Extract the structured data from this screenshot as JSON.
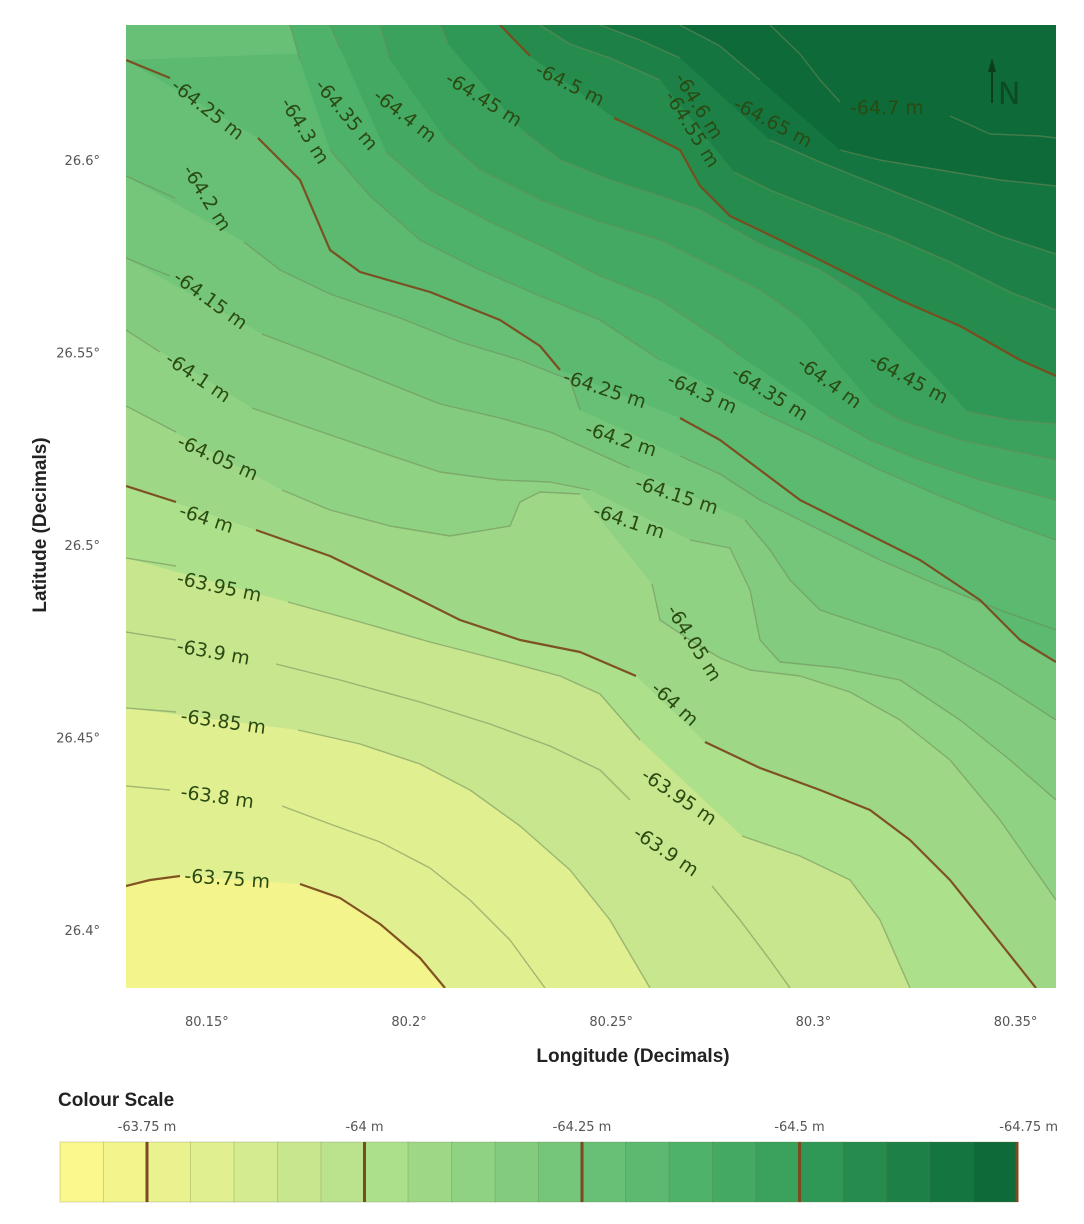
{
  "chart_data": {
    "type": "contour",
    "title": "",
    "xlabel": "Longitude (Decimals)",
    "ylabel": "Latitude (Decimals)",
    "x_ticks": [
      "80.15°",
      "80.2°",
      "80.25°",
      "80.3°",
      "80.35°"
    ],
    "x_tick_values": [
      80.15,
      80.2,
      80.25,
      80.3,
      80.35
    ],
    "y_ticks": [
      "26.6°",
      "26.55°",
      "26.5°",
      "26.45°",
      "26.4°"
    ],
    "y_tick_values": [
      26.6,
      26.55,
      26.5,
      26.45,
      26.4
    ],
    "xlim": [
      80.13,
      80.36
    ],
    "ylim": [
      26.385,
      26.635
    ],
    "contour_interval_m": 0.05,
    "major_interval_m": 0.25,
    "contour_levels": [
      -63.75,
      -63.8,
      -63.85,
      -63.9,
      -63.95,
      -64.0,
      -64.05,
      -64.1,
      -64.15,
      -64.2,
      -64.25,
      -64.3,
      -64.35,
      -64.4,
      -64.45,
      -64.5,
      -64.55,
      -64.6,
      -64.65,
      -64.7
    ],
    "contour_labels": [
      {
        "text": "-64.25 m",
        "level": -64.25
      },
      {
        "text": "-64.3 m",
        "level": -64.3
      },
      {
        "text": "-64.35 m",
        "level": -64.35
      },
      {
        "text": "-64.4 m",
        "level": -64.4
      },
      {
        "text": "-64.45 m",
        "level": -64.45
      },
      {
        "text": "-64.5 m",
        "level": -64.5
      },
      {
        "text": "-64.6 m",
        "level": -64.6
      },
      {
        "text": "-64.55 m",
        "level": -64.55
      },
      {
        "text": "-64.65 m",
        "level": -64.65
      },
      {
        "text": "-64.7 m",
        "level": -64.7
      },
      {
        "text": "-64.2 m",
        "level": -64.2
      },
      {
        "text": "-64.15 m",
        "level": -64.15
      },
      {
        "text": "-64.1 m",
        "level": -64.1
      },
      {
        "text": "-64.05 m",
        "level": -64.05
      },
      {
        "text": "-64 m",
        "level": -64.0
      },
      {
        "text": "-63.95 m",
        "level": -63.95
      },
      {
        "text": "-63.9 m",
        "level": -63.9
      },
      {
        "text": "-63.85 m",
        "level": -63.85
      },
      {
        "text": "-63.8 m",
        "level": -63.8
      },
      {
        "text": "-63.75 m",
        "level": -63.75
      },
      {
        "text": "-64.25 m",
        "level": -64.25
      },
      {
        "text": "-64.3 m",
        "level": -64.3
      },
      {
        "text": "-64.35 m",
        "level": -64.35
      },
      {
        "text": "-64.4 m",
        "level": -64.4
      },
      {
        "text": "-64.45 m",
        "level": -64.45
      },
      {
        "text": "-64.2 m",
        "level": -64.2
      },
      {
        "text": "-64.15 m",
        "level": -64.15
      },
      {
        "text": "-64.1 m",
        "level": -64.1
      },
      {
        "text": "-64.05 m",
        "level": -64.05
      },
      {
        "text": "-64 m",
        "level": -64.0
      },
      {
        "text": "-63.95 m",
        "level": -63.95
      },
      {
        "text": "-63.9 m",
        "level": -63.9
      }
    ],
    "colour_scale": {
      "title": "Colour Scale",
      "tick_labels": [
        "-63.75 m",
        "-64 m",
        "-64.25 m",
        "-64.5 m",
        "-64.75 m"
      ],
      "tick_values": [
        -63.75,
        -64.0,
        -64.25,
        -64.5,
        -64.75
      ],
      "range": [
        -63.65,
        -64.75
      ],
      "colors": [
        "#fbf88e",
        "#f3f48c",
        "#eaf28f",
        "#e0ef90",
        "#d5eb8f",
        "#c8e68e",
        "#bbe28c",
        "#ade08a",
        "#9ed887",
        "#90d283",
        "#83cc7f",
        "#75c67b",
        "#68c076",
        "#5bb970",
        "#4fb26a",
        "#44aa63",
        "#3aa25d",
        "#309856",
        "#268c4e",
        "#1d8046",
        "#157540",
        "#0e6a38"
      ]
    },
    "minor_line_color": "#6f8a5a",
    "major_line_color": "#7b4a1e"
  },
  "north_arrow": {
    "label": "N"
  }
}
